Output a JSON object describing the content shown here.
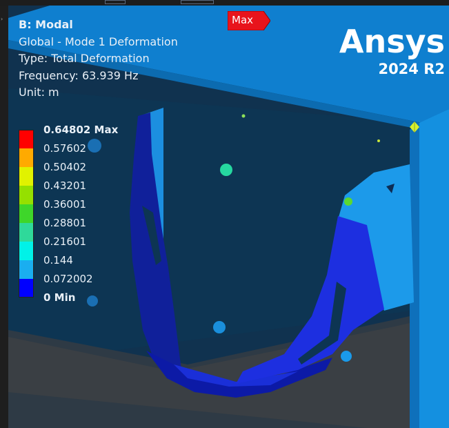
{
  "window": {
    "viewport_background": "#1f4b6e"
  },
  "info_panel": {
    "title": "B: Modal",
    "line1": "Global - Mode 1 Deformation",
    "line2": "Type: Total Deformation",
    "line3": "Frequency: 63.939 Hz",
    "line4": "Unit: m"
  },
  "legend": {
    "labels": [
      "0.64802 Max",
      "0.57602",
      "0.50402",
      "0.43201",
      "0.36001",
      "0.28801",
      "0.21601",
      "0.144",
      "0.072002",
      "0 Min"
    ],
    "colors": [
      "#ff0000",
      "#ffaa00",
      "#e1f200",
      "#95e000",
      "#3ed62a",
      "#2fd99a",
      "#00f2e8",
      "#1aaef0",
      "#0000ff"
    ]
  },
  "probe": {
    "max_tag": "Max",
    "max_tag_color": "#e8141c"
  },
  "branding": {
    "logo": "Ansys",
    "version": "2024 R2"
  },
  "model_colors": {
    "housing": "#0f85d8",
    "bracket_dark": "#0f1f9a",
    "bracket_mid": "#1b2bdb",
    "panel_light": "#1c9aea"
  }
}
